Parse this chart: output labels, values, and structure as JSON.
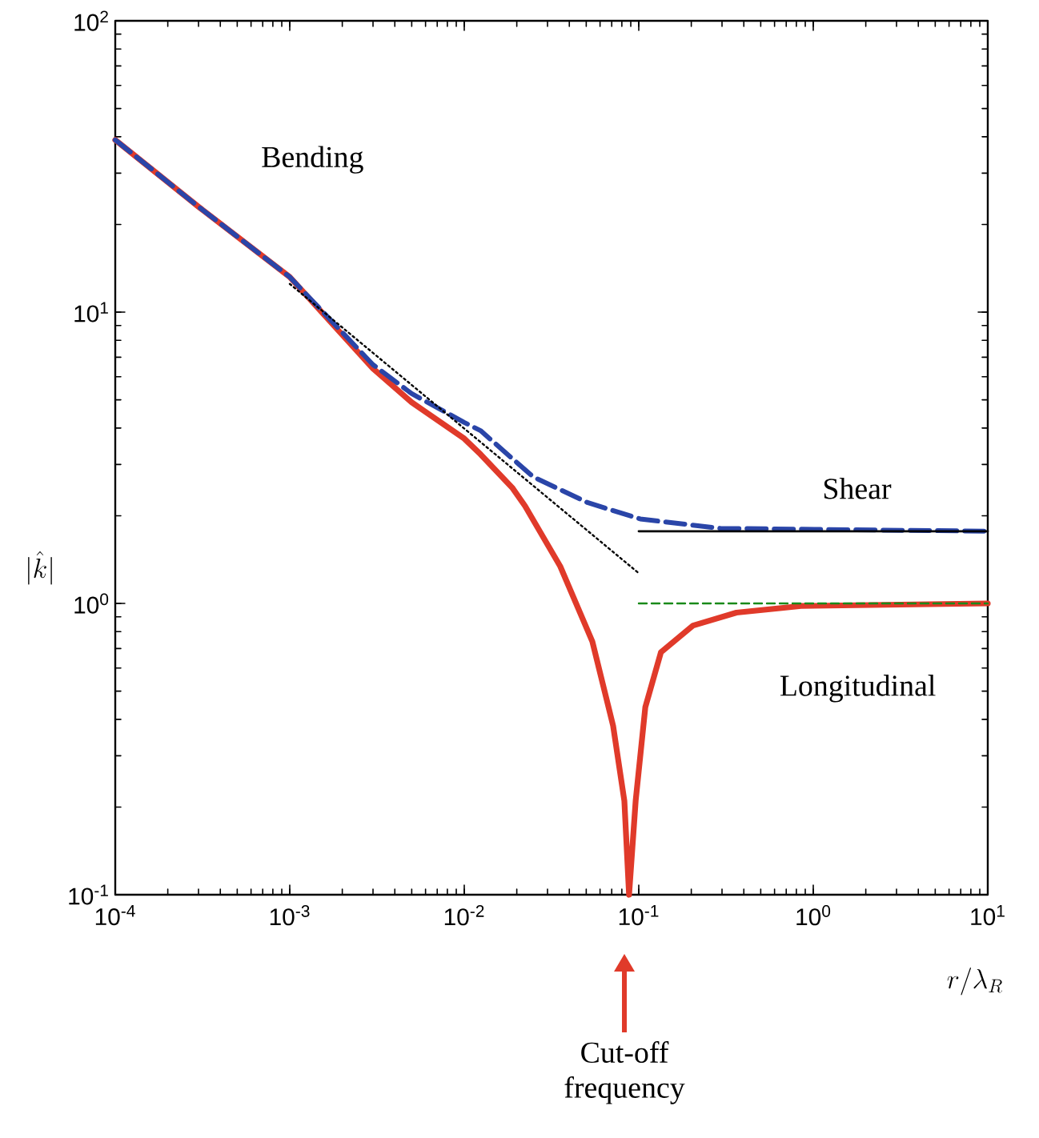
{
  "chart_data": {
    "type": "line",
    "xlabel": "r/\\lambda_R",
    "ylabel": "|\\hat{k}|",
    "log": "xy",
    "marker": "none",
    "xlim": [
      0.0001,
      10
    ],
    "ylim": [
      0.1,
      100
    ],
    "xticks": [
      {
        "value": 0.0001,
        "label": "10$^{-4}$"
      },
      {
        "value": 0.001,
        "label": "10$^{-3}$"
      },
      {
        "value": 0.01,
        "label": "10$^{-2}$"
      },
      {
        "value": 0.1,
        "label": "10$^{-1}$"
      },
      {
        "value": 1,
        "label": "10$^{0}$"
      },
      {
        "value": 10,
        "label": "10$^{1}$"
      }
    ],
    "yticks": [
      {
        "value": 0.1,
        "label": "10$^{-1}$"
      },
      {
        "value": 1,
        "label": "10$^{0}$"
      },
      {
        "value": 10,
        "label": "10$^{1}$"
      },
      {
        "value": 100,
        "label": "10$^{2}$"
      }
    ],
    "series": [
      {
        "color": "#e03a2a",
        "line_style": "solid",
        "x": [
          0.0001,
          0.0003,
          0.001,
          0.003,
          0.005,
          0.01,
          0.0124,
          0.0188,
          0.0223,
          0.0355,
          0.0542,
          0.0713,
          0.0827,
          0.088,
          0.096,
          0.109,
          0.134,
          0.205,
          0.363,
          0.85,
          10
        ],
        "values": [
          39,
          23,
          13.2,
          6.4,
          4.9,
          3.68,
          3.25,
          2.5,
          2.16,
          1.34,
          0.74,
          0.38,
          0.21,
          0.1,
          0.21,
          0.44,
          0.68,
          0.84,
          0.93,
          0.98,
          1.0
        ]
      },
      {
        "color": "#2a45a8",
        "line_style": "dashed",
        "x": [
          0.0001,
          0.0003,
          0.001,
          0.003,
          0.005,
          0.01,
          0.0124,
          0.0248,
          0.0508,
          0.102,
          0.294,
          10
        ],
        "values": [
          39,
          23,
          13.2,
          6.6,
          5.25,
          4.18,
          3.92,
          2.72,
          2.22,
          1.95,
          1.81,
          1.77
        ]
      },
      {
        "color": "#000000",
        "line_style": "dotted",
        "x": [
          0.001,
          0.1
        ],
        "values": [
          12.5,
          1.27
        ]
      },
      {
        "color": "#000000",
        "line_style": "solid",
        "x": [
          0.1,
          10
        ],
        "values": [
          1.77,
          1.77
        ]
      },
      {
        "color": "#1a8a1a",
        "line_style": "dashed",
        "x": [
          0.1,
          10
        ],
        "values": [
          1.0,
          1.0
        ]
      }
    ],
    "annotations": [
      "Bending",
      "Shear",
      "Longitudinal",
      "Cut-off frequency"
    ]
  }
}
